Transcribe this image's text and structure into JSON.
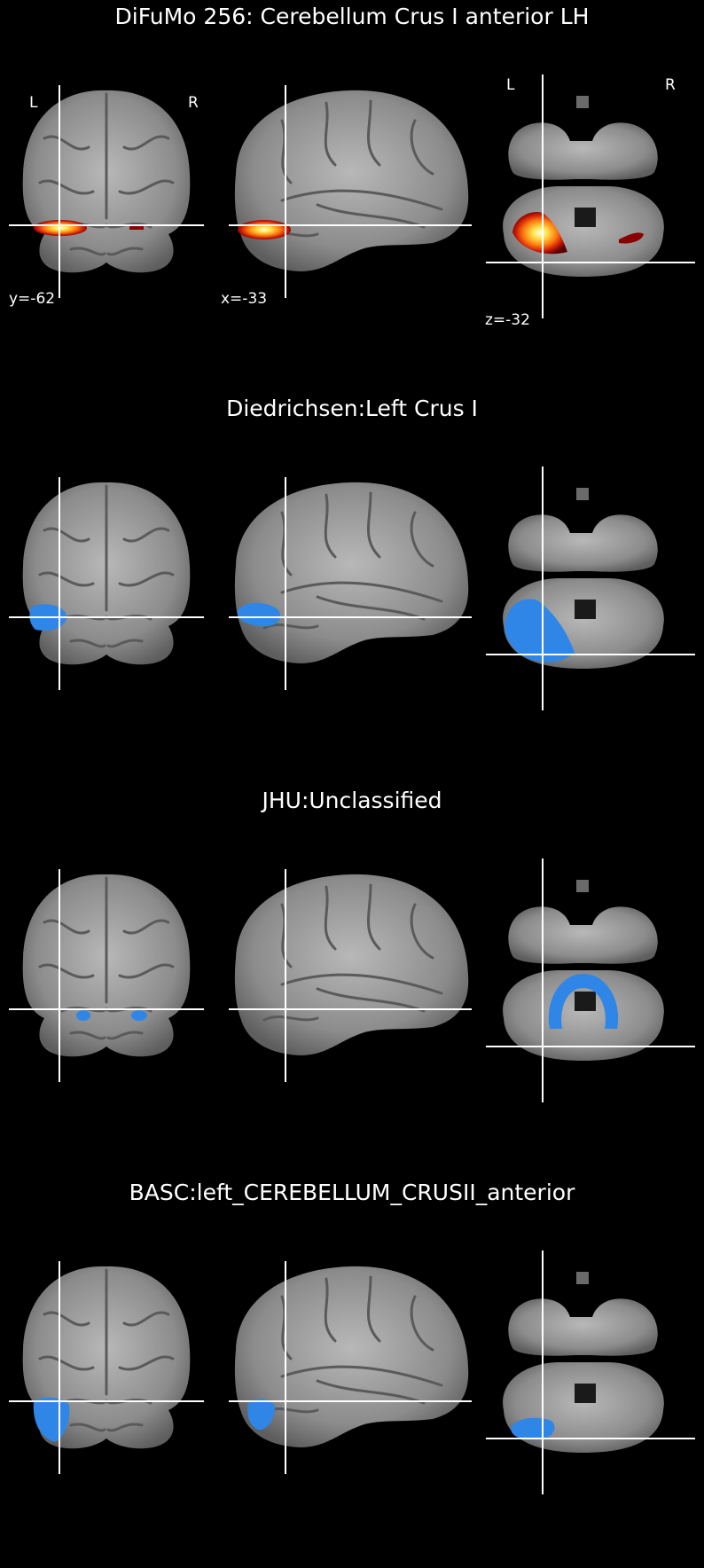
{
  "panels": [
    {
      "title": "DiFuMo 256: Cerebellum Crus I anterior LH",
      "overlay": "heat",
      "orient_left": "L",
      "orient_right": "R",
      "orient_axial_left": "L",
      "orient_axial_right": "R",
      "coord_coronal": "y=-62",
      "coord_sagittal": "x=-33",
      "coord_axial": "z=-32"
    },
    {
      "title": "Diedrichsen:Left Crus I",
      "overlay": "blue-crus"
    },
    {
      "title": "JHU:Unclassified",
      "overlay": "blue-jhu"
    },
    {
      "title": "BASC:left_CEREBELLUM_CRUSII_anterior",
      "overlay": "blue-basc"
    }
  ],
  "colors": {
    "background": "#000000",
    "blue_overlay": "#2f86e6",
    "crosshair": "#ffffff"
  }
}
